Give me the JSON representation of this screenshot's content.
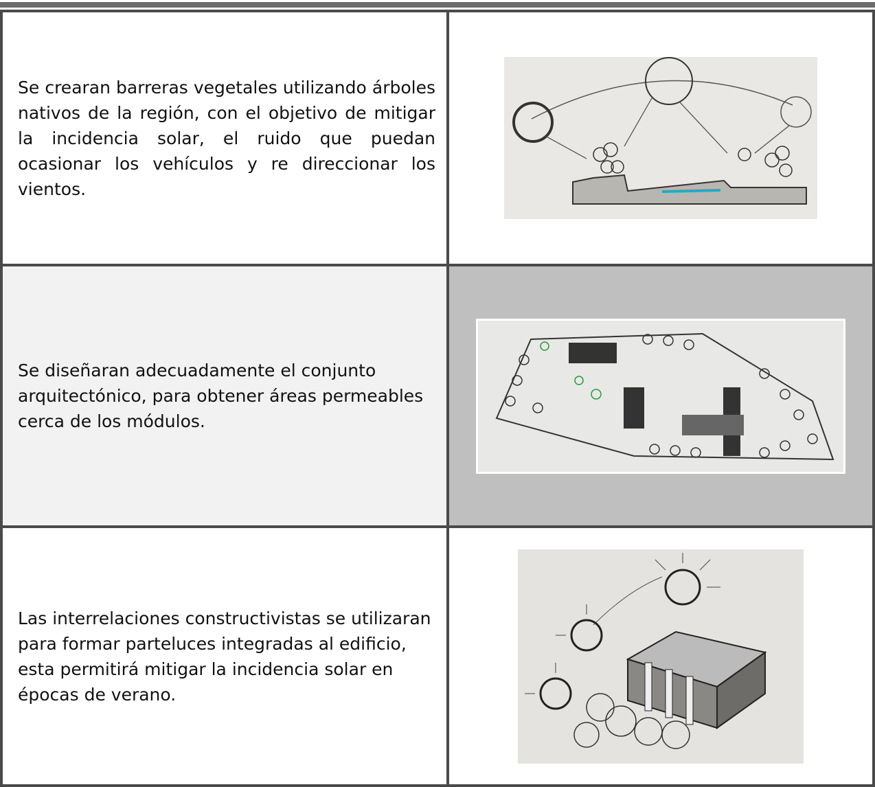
{
  "rows": [
    {
      "text": "Se crearan barreras vegetales utilizando árboles nativos de la región, con el objetivo de mitigar la incidencia solar, el ruido que puedan ocasionar los vehículos y re direccionar los vientos."
    },
    {
      "text": "Se diseñaran adecuadamente el conjunto arquitectónico, para obtener áreas  permeables cerca de los módulos."
    },
    {
      "text": "Las interrelaciones constructivistas se utilizaran para formar parteluces integradas al edificio, esta permitirá mitigar la incidencia solar en épocas de verano."
    }
  ]
}
